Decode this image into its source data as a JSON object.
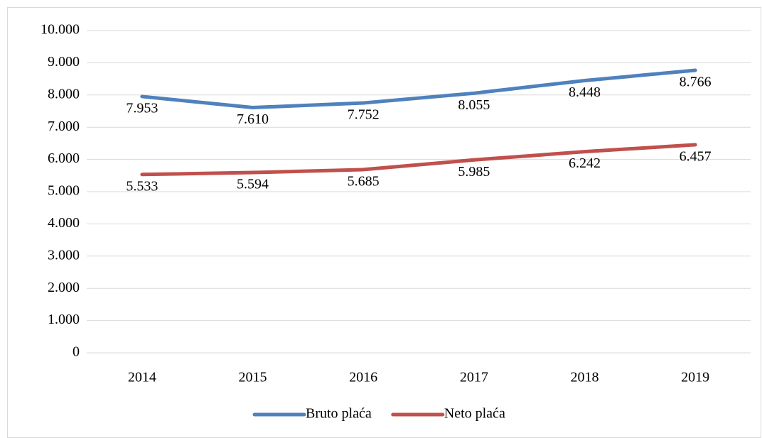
{
  "chart_data": {
    "type": "line",
    "categories": [
      "2014",
      "2015",
      "2016",
      "2017",
      "2018",
      "2019"
    ],
    "series": [
      {
        "name": "Bruto plaća",
        "color": "#4f81bd",
        "values": [
          7953,
          7610,
          7752,
          8055,
          8448,
          8766
        ],
        "value_labels": [
          "7.953",
          "7.610",
          "7.752",
          "8.055",
          "8.448",
          "8.766"
        ]
      },
      {
        "name": "Neto plaća",
        "color": "#c0504d",
        "values": [
          5533,
          5594,
          5685,
          5985,
          6242,
          6457
        ],
        "value_labels": [
          "5.533",
          "5.594",
          "5.685",
          "5.985",
          "6.242",
          "6.457"
        ]
      }
    ],
    "ylim": [
      0,
      10000
    ],
    "yticks": [
      0,
      {
        "value": 1000,
        "label": "1.000"
      },
      {
        "value": 2000,
        "label": "2.000"
      },
      {
        "value": 3000,
        "label": "3.000"
      },
      {
        "value": 4000,
        "label": "4.000"
      },
      {
        "value": 5000,
        "label": "5.000"
      },
      {
        "value": 6000,
        "label": "6.000"
      },
      {
        "value": 7000,
        "label": "7.000"
      },
      {
        "value": 8000,
        "label": "8.000"
      },
      {
        "value": 9000,
        "label": "9.000"
      },
      {
        "value": 10000,
        "label": "10.000"
      }
    ],
    "grid": true,
    "legend": "bottom"
  }
}
